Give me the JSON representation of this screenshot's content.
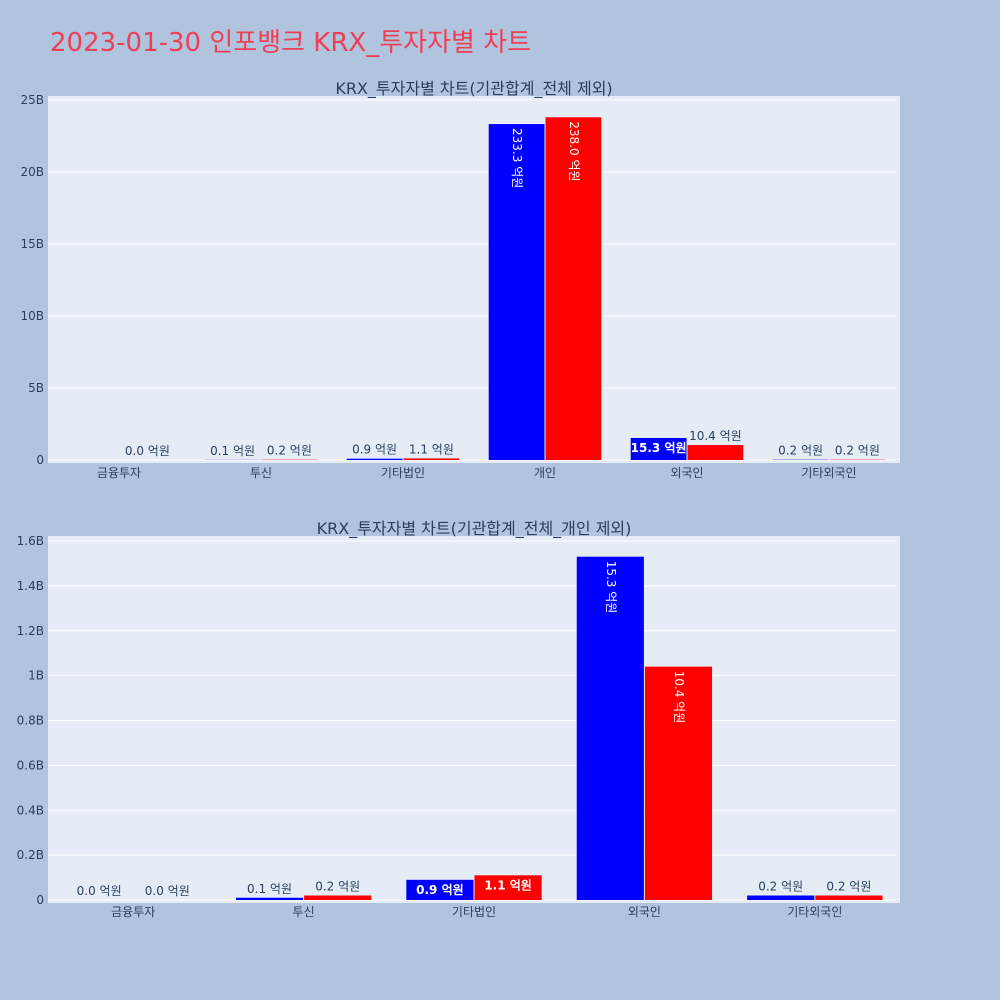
{
  "title": "2023-01-30 인포뱅크 KRX_투자자별 차트",
  "colors": {
    "series_a": "#0000ff",
    "series_b": "#ff0000",
    "plot_bg": "#e5ecf6",
    "page_bg": "#b0c4de",
    "title": "#ef3f56"
  },
  "chart_data": [
    {
      "type": "bar",
      "title": "KRX_투자자별 차트(기관합계_전체 제외)",
      "categories": [
        "금융투자",
        "투신",
        "기타법인",
        "개인",
        "외국인",
        "기타외국인"
      ],
      "ylim": [
        0,
        25000000000
      ],
      "yticks": [
        0,
        5000000000,
        10000000000,
        15000000000,
        20000000000,
        25000000000
      ],
      "ytick_labels": [
        "0",
        "5B",
        "10B",
        "15B",
        "20B",
        "25B"
      ],
      "grid": true,
      "series": [
        {
          "values": [
            0,
            10000000,
            90000000,
            23330000000,
            1530000000,
            20000000
          ],
          "labels": [
            "",
            "0.1 억원",
            "0.9 억원",
            "233.3 억원",
            "15.3 억원",
            "0.2 억원"
          ]
        },
        {
          "values": [
            0,
            20000000,
            110000000,
            23800000000,
            1040000000,
            20000000
          ],
          "labels": [
            "0.0 억원",
            "0.2 억원",
            "1.1 억원",
            "238.0 억원",
            "10.4 억원",
            "0.2 억원"
          ]
        }
      ]
    },
    {
      "type": "bar",
      "title": "KRX_투자자별 차트(기관합계_전체_개인 제외)",
      "categories": [
        "금융투자",
        "투신",
        "기타법인",
        "외국인",
        "기타외국인"
      ],
      "ylim": [
        0,
        1600000000
      ],
      "yticks": [
        0,
        200000000,
        400000000,
        600000000,
        800000000,
        1000000000,
        1200000000,
        1400000000,
        1600000000
      ],
      "ytick_labels": [
        "0",
        "0.2B",
        "0.4B",
        "0.6B",
        "0.8B",
        "1B",
        "1.2B",
        "1.4B",
        "1.6B"
      ],
      "grid": true,
      "series": [
        {
          "values": [
            0,
            10000000,
            90000000,
            1530000000,
            20000000
          ],
          "labels": [
            "0.0 억원",
            "0.1 억원",
            "0.9 억원",
            "15.3 억원",
            "0.2 억원"
          ]
        },
        {
          "values": [
            0,
            20000000,
            110000000,
            1040000000,
            20000000
          ],
          "labels": [
            "0.0 억원",
            "0.2 억원",
            "1.1 억원",
            "10.4 억원",
            "0.2 억원"
          ]
        }
      ]
    }
  ]
}
